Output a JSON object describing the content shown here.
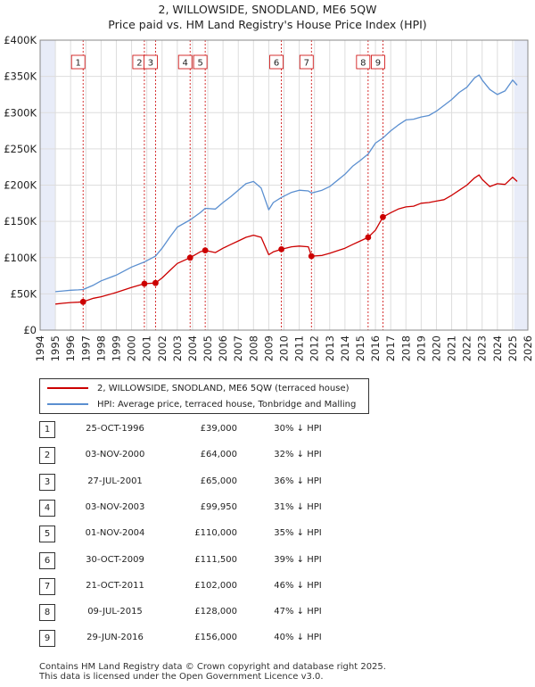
{
  "header": {
    "title_line1": "2, WILLOWSIDE, SNODLAND, ME6 5QW",
    "title_line2": "Price paid vs. HM Land Registry's House Price Index (HPI)"
  },
  "colors": {
    "property": "#cc0000",
    "hpi": "#5b8fd0",
    "shade": "#e8ecf8",
    "marker": "#cc0000"
  },
  "legend": {
    "property_label": "2, WILLOWSIDE, SNODLAND, ME6 5QW (terraced house)",
    "hpi_label": "HPI: Average price, terraced house, Tonbridge and Malling"
  },
  "sales": [
    {
      "num": "1",
      "date": "25-OCT-1996",
      "price": "£39,000",
      "hpi": "30% ↓ HPI"
    },
    {
      "num": "2",
      "date": "03-NOV-2000",
      "price": "£64,000",
      "hpi": "32% ↓ HPI"
    },
    {
      "num": "3",
      "date": "27-JUL-2001",
      "price": "£65,000",
      "hpi": "36% ↓ HPI"
    },
    {
      "num": "4",
      "date": "03-NOV-2003",
      "price": "£99,950",
      "hpi": "31% ↓ HPI"
    },
    {
      "num": "5",
      "date": "01-NOV-2004",
      "price": "£110,000",
      "hpi": "35% ↓ HPI"
    },
    {
      "num": "6",
      "date": "30-OCT-2009",
      "price": "£111,500",
      "hpi": "39% ↓ HPI"
    },
    {
      "num": "7",
      "date": "21-OCT-2011",
      "price": "£102,000",
      "hpi": "46% ↓ HPI"
    },
    {
      "num": "8",
      "date": "09-JUL-2015",
      "price": "£128,000",
      "hpi": "47% ↓ HPI"
    },
    {
      "num": "9",
      "date": "29-JUN-2016",
      "price": "£156,000",
      "hpi": "40% ↓ HPI"
    }
  ],
  "footer": {
    "line1": "Contains HM Land Registry data © Crown copyright and database right 2025.",
    "line2": "This data is licensed under the Open Government Licence v3.0."
  },
  "chart_data": {
    "type": "line",
    "xlim": [
      1994,
      2026
    ],
    "ylim": [
      0,
      400000
    ],
    "x_ticks": [
      1994,
      1995,
      1996,
      1997,
      1998,
      1999,
      2000,
      2001,
      2002,
      2003,
      2004,
      2005,
      2006,
      2007,
      2008,
      2009,
      2010,
      2011,
      2012,
      2013,
      2014,
      2015,
      2016,
      2017,
      2018,
      2019,
      2020,
      2021,
      2022,
      2023,
      2024,
      2025,
      2026
    ],
    "y_ticks": [
      0,
      50000,
      100000,
      150000,
      200000,
      250000,
      300000,
      350000,
      400000
    ],
    "y_tick_labels": [
      "£0",
      "£50K",
      "£100K",
      "£150K",
      "£200K",
      "£250K",
      "£300K",
      "£350K",
      "£400K"
    ],
    "shaded_ranges": [
      [
        1994,
        1995
      ],
      [
        2025.1,
        2026
      ]
    ],
    "sale_markers": [
      {
        "label": "1",
        "x": 1996.82,
        "y": 39000
      },
      {
        "label": "2",
        "x": 2000.84,
        "y": 64000
      },
      {
        "label": "3",
        "x": 2001.57,
        "y": 65000
      },
      {
        "label": "4",
        "x": 2003.84,
        "y": 99950
      },
      {
        "label": "5",
        "x": 2004.83,
        "y": 110000
      },
      {
        "label": "6",
        "x": 2009.83,
        "y": 111500
      },
      {
        "label": "7",
        "x": 2011.8,
        "y": 102000
      },
      {
        "label": "8",
        "x": 2015.52,
        "y": 128000
      },
      {
        "label": "9",
        "x": 2016.49,
        "y": 156000
      }
    ],
    "series": [
      {
        "name": "2, WILLOWSIDE, SNODLAND, ME6 5QW (terraced house)",
        "color": "#cc0000",
        "x": [
          1995.0,
          1995.5,
          1996.0,
          1996.5,
          1996.82,
          1997.5,
          1998.0,
          1999.0,
          2000.0,
          2000.84,
          2001.57,
          2002.0,
          2002.5,
          2003.0,
          2003.84,
          2004.5,
          2004.83,
          2005.5,
          2006.0,
          2006.5,
          2007.0,
          2007.5,
          2008.0,
          2008.5,
          2009.0,
          2009.3,
          2009.83,
          2010.5,
          2011.0,
          2011.6,
          2011.8,
          2012.5,
          2013.0,
          2014.0,
          2014.5,
          2015.0,
          2015.52,
          2016.0,
          2016.49,
          2017.0,
          2017.5,
          2018.0,
          2018.5,
          2019.0,
          2019.5,
          2020.0,
          2020.5,
          2021.0,
          2021.5,
          2022.0,
          2022.5,
          2022.8,
          2023.0,
          2023.5,
          2024.0,
          2024.5,
          2025.0,
          2025.3
        ],
        "y": [
          36000,
          37000,
          38000,
          38500,
          39000,
          44000,
          46000,
          52000,
          59000,
          64000,
          65000,
          72000,
          82000,
          92000,
          99950,
          108000,
          110000,
          107000,
          113000,
          118000,
          123000,
          128000,
          131000,
          128000,
          104000,
          108000,
          111500,
          115000,
          116000,
          115000,
          102000,
          103000,
          106000,
          113000,
          118000,
          123000,
          128000,
          138000,
          156000,
          162000,
          167000,
          170000,
          171000,
          175000,
          176000,
          178000,
          180000,
          186000,
          193000,
          200000,
          210000,
          214000,
          208000,
          198000,
          202000,
          201000,
          211000,
          205000
        ]
      },
      {
        "name": "HPI: Average price, terraced house, Tonbridge and Malling",
        "color": "#5b8fd0",
        "x": [
          1995.0,
          1995.5,
          1996.0,
          1996.5,
          1996.82,
          1997.5,
          1998.0,
          1999.0,
          2000.0,
          2000.84,
          2001.57,
          2002.0,
          2002.5,
          2003.0,
          2003.84,
          2004.5,
          2004.83,
          2005.5,
          2006.0,
          2006.5,
          2007.0,
          2007.5,
          2008.0,
          2008.5,
          2009.0,
          2009.3,
          2009.83,
          2010.5,
          2011.0,
          2011.6,
          2011.8,
          2012.5,
          2013.0,
          2014.0,
          2014.5,
          2015.0,
          2015.52,
          2016.0,
          2016.49,
          2017.0,
          2017.5,
          2018.0,
          2018.5,
          2019.0,
          2019.5,
          2020.0,
          2020.5,
          2021.0,
          2021.5,
          2022.0,
          2022.5,
          2022.8,
          2023.0,
          2023.5,
          2024.0,
          2024.5,
          2025.0,
          2025.3
        ],
        "y": [
          53000,
          54000,
          55000,
          55500,
          56000,
          62000,
          68000,
          76000,
          87000,
          94000,
          102000,
          113000,
          128000,
          142000,
          152000,
          162000,
          168000,
          167000,
          176000,
          184000,
          193000,
          202000,
          205000,
          196000,
          166000,
          176000,
          183000,
          190000,
          193000,
          192000,
          189000,
          193000,
          198000,
          215000,
          226000,
          234000,
          243000,
          258000,
          265000,
          275000,
          283000,
          290000,
          291000,
          294000,
          296000,
          302000,
          310000,
          318000,
          328000,
          335000,
          348000,
          352000,
          345000,
          332000,
          325000,
          330000,
          345000,
          338000
        ]
      }
    ]
  }
}
